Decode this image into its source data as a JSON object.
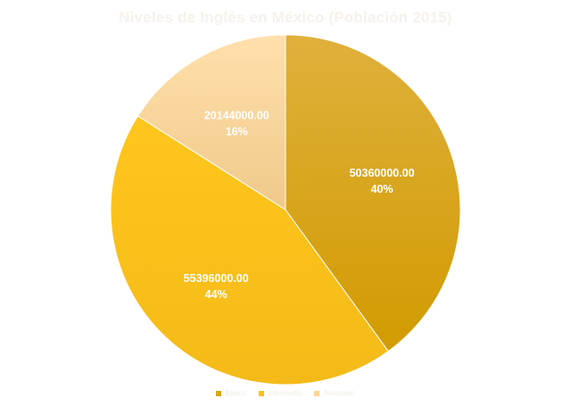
{
  "chart_data": {
    "type": "pie",
    "title": "Niveles de Inglés en México (Población 2015)",
    "categories": [
      "Básico",
      "Intermedio",
      "Avanzado"
    ],
    "values": [
      50360000.0,
      55396000.0,
      20144000.0
    ],
    "value_labels": [
      "50360000.00",
      "55396000.00",
      "20144000.00"
    ],
    "percent_labels": [
      "40%",
      "44%",
      "16%"
    ],
    "colors": [
      "#d9a514",
      "#ffc000",
      "#ffd591"
    ],
    "start_angle_deg": 0,
    "direction": "clockwise",
    "legend_position": "bottom"
  }
}
